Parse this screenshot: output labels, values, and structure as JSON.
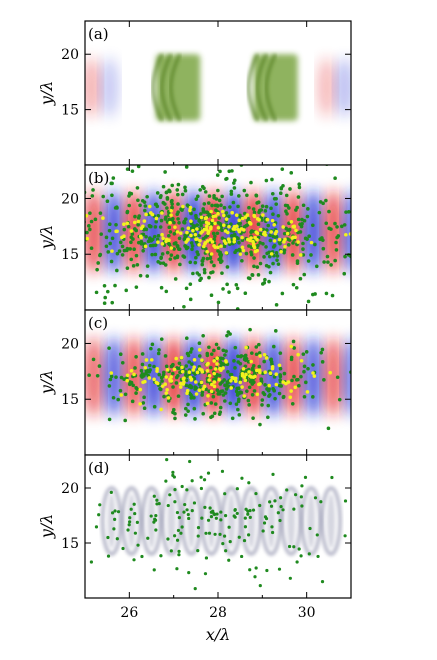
{
  "figure": {
    "x_axis_label": "x/λ",
    "y_axis_label": "y/λ",
    "x_tick_labels": [
      "26",
      "28",
      "30"
    ],
    "y_tick_labels": [
      "20",
      "15"
    ]
  },
  "colors": {
    "red_field": "#e0141e",
    "blue_field": "#1420d0",
    "green_points": "#1f8a1f",
    "yellow_points": "#f2f21e",
    "olive_density": "#6a9a2a",
    "gray_density": "#8a8ca8"
  },
  "chart_data": [
    {
      "type": "heatmap",
      "panel_label": "(a)",
      "xlim": [
        25,
        31
      ],
      "ylim": [
        10,
        23
      ],
      "x_ticks": [
        26,
        28,
        30
      ],
      "y_ticks": [
        15,
        20
      ],
      "xlabel": "",
      "ylabel": "y/λ",
      "description_values": {
        "green_blocks_x": [
          [
            26.6,
            27.6
          ],
          [
            28.8,
            29.8
          ]
        ],
        "green_blocks_y": [
          14,
          20
        ]
      }
    },
    {
      "type": "heatmap",
      "panel_label": "(b)",
      "xlim": [
        25,
        31
      ],
      "ylim": [
        10,
        23
      ],
      "x_ticks": [
        26,
        28,
        30
      ],
      "y_ticks": [
        15,
        20
      ],
      "xlabel": "",
      "ylabel": "y/λ",
      "field_center_y": 17,
      "field_period_x": 0.9,
      "points_green_count": 700,
      "points_yellow_count": 180
    },
    {
      "type": "heatmap",
      "panel_label": "(c)",
      "xlim": [
        25,
        31
      ],
      "ylim": [
        10,
        23
      ],
      "x_ticks": [
        26,
        28,
        30
      ],
      "y_ticks": [
        15,
        20
      ],
      "xlabel": "",
      "ylabel": "y/λ",
      "field_center_y": 17,
      "field_period_x": 0.9,
      "points_green_count": 400,
      "points_yellow_count": 140
    },
    {
      "type": "heatmap",
      "panel_label": "(d)",
      "xlim": [
        25,
        31
      ],
      "ylim": [
        10,
        23
      ],
      "x_ticks": [
        26,
        28,
        30
      ],
      "y_ticks": [
        15,
        20
      ],
      "xlabel": "x/λ",
      "ylabel": "y/λ",
      "gray_band_y": [
        14,
        20
      ],
      "points_green_count": 180
    }
  ]
}
